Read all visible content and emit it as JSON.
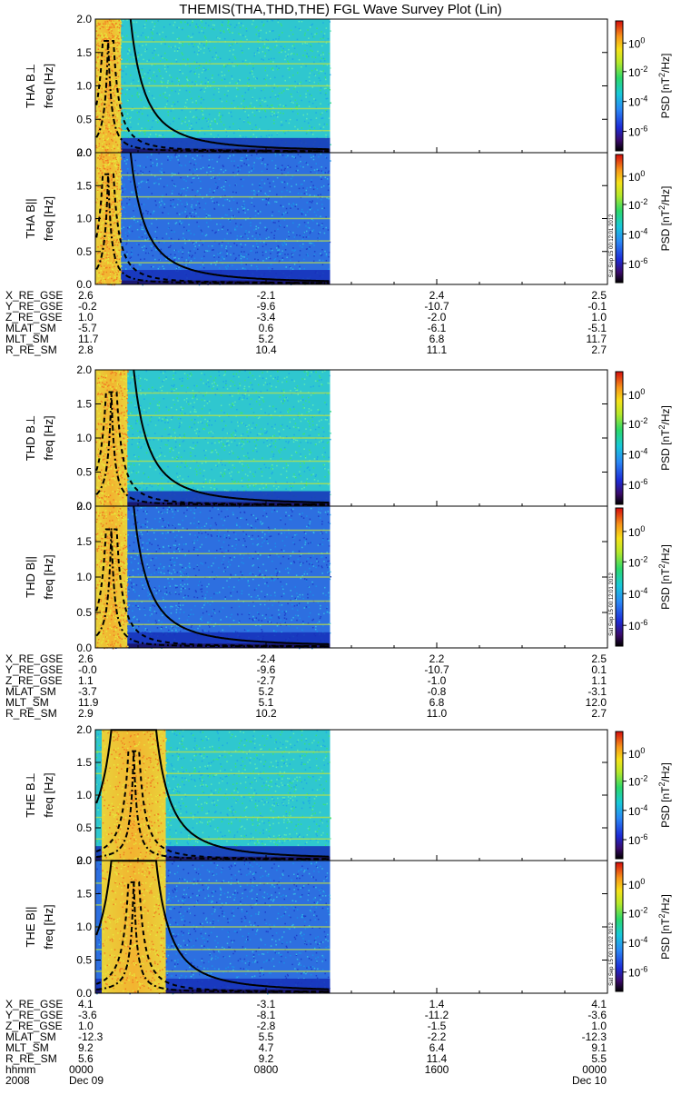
{
  "title": "THEMIS(THA,THD,THE) FGL Wave Survey Plot (Lin)",
  "stamps": [
    "Sat Sep 15 00:12:01 2012",
    "Sat Sep 15 00:12:01 2012",
    "Sat Sep 15 00:12:02 2012"
  ],
  "colorbar": {
    "label": "PSD [nT",
    "label_exp": "2",
    "label_tail": "/Hz]",
    "ticks": [
      {
        "base": "10",
        "exp": "0",
        "frac": 0.17
      },
      {
        "base": "10",
        "exp": "-2",
        "frac": 0.39
      },
      {
        "base": "10",
        "exp": "-4",
        "frac": 0.62
      },
      {
        "base": "10",
        "exp": "-6",
        "frac": 0.85
      }
    ]
  },
  "ephem_header": [
    "X_RE_GSE",
    "Y_RE_GSE",
    "Z_RE_GSE",
    "MLAT_SM",
    "MLT_SM",
    "R_RE_SM"
  ],
  "time_header": [
    "hhmm",
    "2008"
  ],
  "time_ticks": [
    {
      "hhmm": "0000",
      "date": "Dec 09"
    },
    {
      "hhmm": "0800",
      "date": ""
    },
    {
      "hhmm": "1600",
      "date": ""
    },
    {
      "hhmm": "0000",
      "date": "Dec 10"
    }
  ],
  "chart_data": [
    {
      "type": "heatmap",
      "probe": "THA",
      "panels": [
        {
          "ylabel": "THA B⊥",
          "ylabel2": "freq [Hz]",
          "yticks": [
            "0.0",
            "0.5",
            "1.0",
            "1.5",
            "2.0"
          ],
          "ylim": [
            0,
            2.0
          ],
          "x": [
            0,
            24
          ],
          "hours_with_data": [
            0,
            11
          ],
          "high_psd_hours": [
            0,
            1.2
          ]
        },
        {
          "ylabel": "THA B||",
          "ylabel2": "freq [Hz]",
          "yticks": [
            "0.0",
            "0.5",
            "1.0",
            "1.5",
            "2.0"
          ],
          "ylim": [
            0,
            2.0
          ],
          "x": [
            0,
            24
          ],
          "hours_with_data": [
            0,
            11
          ],
          "high_psd_hours": [
            0,
            1.2
          ]
        }
      ],
      "ephem": [
        [
          "2.6",
          "-0.2",
          "1.0",
          "-5.7",
          "11.7",
          "2.8"
        ],
        [
          "-2.1",
          "-9.6",
          "-3.4",
          "0.6",
          "5.2",
          "10.4"
        ],
        [
          "2.4",
          "-10.7",
          "-2.0",
          "-6.1",
          "6.8",
          "11.1"
        ],
        [
          "2.5",
          "-0.1",
          "1.0",
          "-5.1",
          "11.7",
          "2.7"
        ]
      ]
    },
    {
      "type": "heatmap",
      "probe": "THD",
      "panels": [
        {
          "ylabel": "THD B⊥",
          "ylabel2": "freq [Hz]",
          "yticks": [
            "0.0",
            "0.5",
            "1.0",
            "1.5",
            "2.0"
          ],
          "ylim": [
            0,
            2.0
          ],
          "x": [
            0,
            24
          ],
          "hours_with_data": [
            0,
            11
          ],
          "high_psd_hours": [
            0,
            1.5
          ]
        },
        {
          "ylabel": "THD B||",
          "ylabel2": "freq [Hz]",
          "yticks": [
            "0.0",
            "0.5",
            "1.0",
            "1.5",
            "2.0"
          ],
          "ylim": [
            0,
            2.0
          ],
          "x": [
            0,
            24
          ],
          "hours_with_data": [
            0,
            11
          ],
          "high_psd_hours": [
            0,
            1.5
          ]
        }
      ],
      "ephem": [
        [
          "2.6",
          "-0.0",
          "1.1",
          "-3.7",
          "11.9",
          "2.9"
        ],
        [
          "-2.4",
          "-9.6",
          "-2.7",
          "5.2",
          "5.1",
          "10.2"
        ],
        [
          "2.2",
          "-10.7",
          "-1.0",
          "-0.8",
          "6.8",
          "11.0"
        ],
        [
          "2.5",
          "0.1",
          "1.1",
          "-3.1",
          "12.0",
          "2.7"
        ]
      ]
    },
    {
      "type": "heatmap",
      "probe": "THE",
      "panels": [
        {
          "ylabel": "THE B⊥",
          "ylabel2": "freq [Hz]",
          "yticks": [
            "0.0",
            "0.5",
            "1.0",
            "1.5",
            "2.0"
          ],
          "ylim": [
            0,
            2.0
          ],
          "x": [
            0,
            24
          ],
          "hours_with_data": [
            0,
            11
          ],
          "high_psd_hours": [
            0.3,
            3.3
          ]
        },
        {
          "ylabel": "THE B||",
          "ylabel2": "freq [Hz]",
          "yticks": [
            "0.0",
            "0.5",
            "1.0",
            "1.5",
            "2.0"
          ],
          "ylim": [
            0,
            2.0
          ],
          "x": [
            0,
            24
          ],
          "hours_with_data": [
            0,
            11
          ],
          "high_psd_hours": [
            0.3,
            3.3
          ]
        }
      ],
      "ephem": [
        [
          "4.1",
          "-3.6",
          "1.0",
          "-12.3",
          "9.2",
          "5.6"
        ],
        [
          "-3.1",
          "-8.1",
          "-2.8",
          "5.5",
          "4.7",
          "9.2"
        ],
        [
          "1.4",
          "-11.2",
          "-1.5",
          "-2.2",
          "6.4",
          "11.4"
        ],
        [
          "4.1",
          "-3.6",
          "1.0",
          "-12.3",
          "9.1",
          "5.5"
        ]
      ]
    }
  ]
}
